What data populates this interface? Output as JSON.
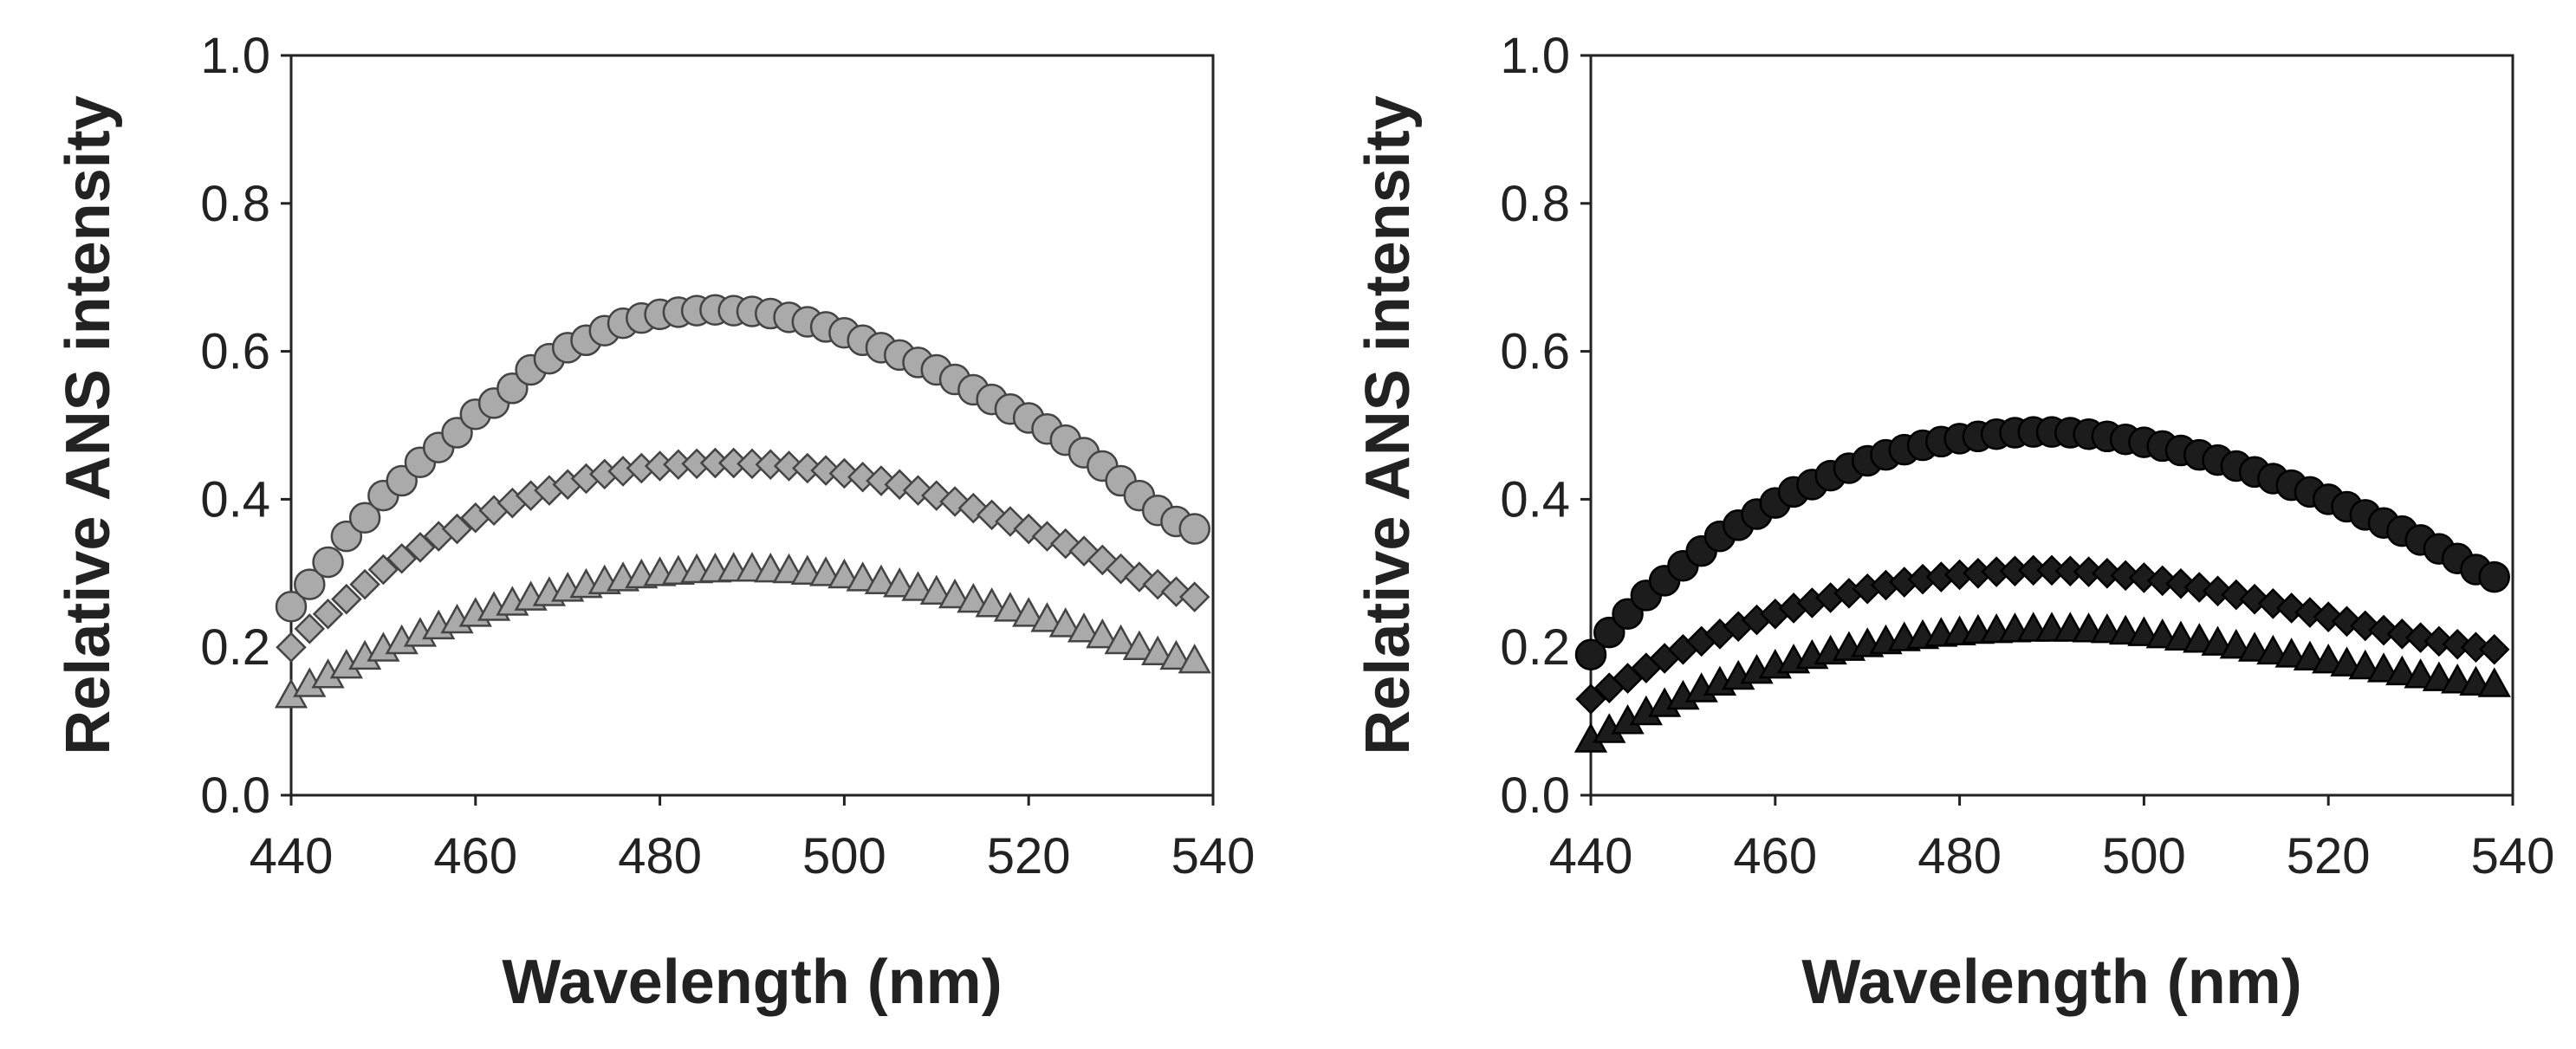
{
  "chart_data": [
    {
      "type": "scatter",
      "xlabel": "Wavelength (nm)",
      "ylabel": "Relative ANS intensity",
      "xlim": [
        440,
        540
      ],
      "ylim": [
        0.0,
        1.0
      ],
      "xticks": [
        "440",
        "460",
        "480",
        "500",
        "520",
        "540"
      ],
      "yticks": [
        "0.0",
        "0.2",
        "0.4",
        "0.6",
        "0.8",
        "1.0"
      ],
      "marker_color": "#aaaaaa",
      "marker_stroke": "#444444",
      "series": [
        {
          "marker": "circle",
          "x": [
            440,
            442,
            444,
            446,
            448,
            450,
            452,
            454,
            456,
            458,
            460,
            462,
            464,
            466,
            468,
            470,
            472,
            474,
            476,
            478,
            480,
            482,
            484,
            486,
            488,
            490,
            492,
            494,
            496,
            498,
            500,
            502,
            504,
            506,
            508,
            510,
            512,
            514,
            516,
            518,
            520,
            522,
            524,
            526,
            528,
            530,
            532,
            534,
            536,
            538
          ],
          "y": [
            0.255,
            0.285,
            0.315,
            0.35,
            0.375,
            0.405,
            0.425,
            0.45,
            0.47,
            0.49,
            0.515,
            0.53,
            0.55,
            0.575,
            0.59,
            0.605,
            0.615,
            0.628,
            0.638,
            0.645,
            0.65,
            0.653,
            0.655,
            0.656,
            0.655,
            0.654,
            0.651,
            0.646,
            0.64,
            0.633,
            0.625,
            0.615,
            0.605,
            0.595,
            0.585,
            0.575,
            0.562,
            0.548,
            0.535,
            0.522,
            0.51,
            0.495,
            0.48,
            0.463,
            0.445,
            0.425,
            0.405,
            0.385,
            0.37,
            0.36
          ]
        },
        {
          "marker": "diamond",
          "x": [
            440,
            442,
            444,
            446,
            448,
            450,
            452,
            454,
            456,
            458,
            460,
            462,
            464,
            466,
            468,
            470,
            472,
            474,
            476,
            478,
            480,
            482,
            484,
            486,
            488,
            490,
            492,
            494,
            496,
            498,
            500,
            502,
            504,
            506,
            508,
            510,
            512,
            514,
            516,
            518,
            520,
            522,
            524,
            526,
            528,
            530,
            532,
            534,
            536,
            538
          ],
          "y": [
            0.2,
            0.225,
            0.245,
            0.265,
            0.285,
            0.305,
            0.32,
            0.335,
            0.35,
            0.36,
            0.375,
            0.385,
            0.395,
            0.405,
            0.412,
            0.42,
            0.428,
            0.434,
            0.438,
            0.442,
            0.445,
            0.447,
            0.448,
            0.449,
            0.449,
            0.448,
            0.447,
            0.445,
            0.442,
            0.439,
            0.435,
            0.43,
            0.425,
            0.42,
            0.412,
            0.405,
            0.397,
            0.388,
            0.379,
            0.37,
            0.36,
            0.35,
            0.34,
            0.33,
            0.318,
            0.306,
            0.295,
            0.285,
            0.275,
            0.268
          ]
        },
        {
          "marker": "triangle",
          "x": [
            440,
            442,
            444,
            446,
            448,
            450,
            452,
            454,
            456,
            458,
            460,
            462,
            464,
            466,
            468,
            470,
            472,
            474,
            476,
            478,
            480,
            482,
            484,
            486,
            488,
            490,
            492,
            494,
            496,
            498,
            500,
            502,
            504,
            506,
            508,
            510,
            512,
            514,
            516,
            518,
            520,
            522,
            524,
            526,
            528,
            530,
            532,
            534,
            536,
            538
          ],
          "y": [
            0.135,
            0.15,
            0.162,
            0.175,
            0.187,
            0.198,
            0.208,
            0.218,
            0.228,
            0.236,
            0.245,
            0.253,
            0.26,
            0.267,
            0.273,
            0.279,
            0.284,
            0.289,
            0.293,
            0.297,
            0.3,
            0.302,
            0.304,
            0.305,
            0.306,
            0.306,
            0.305,
            0.304,
            0.302,
            0.3,
            0.297,
            0.293,
            0.289,
            0.285,
            0.28,
            0.275,
            0.27,
            0.264,
            0.258,
            0.252,
            0.245,
            0.238,
            0.231,
            0.224,
            0.216,
            0.208,
            0.2,
            0.193,
            0.187,
            0.182
          ]
        }
      ]
    },
    {
      "type": "scatter",
      "xlabel": "Wavelength (nm)",
      "ylabel": "Relative ANS intensity",
      "xlim": [
        440,
        540
      ],
      "ylim": [
        0.0,
        1.0
      ],
      "xticks": [
        "440",
        "460",
        "480",
        "500",
        "520",
        "540"
      ],
      "yticks": [
        "0.0",
        "0.2",
        "0.4",
        "0.6",
        "0.8",
        "1.0"
      ],
      "marker_color": "#1c1c1c",
      "marker_stroke": "#000000",
      "series": [
        {
          "marker": "circle",
          "x": [
            440,
            442,
            444,
            446,
            448,
            450,
            452,
            454,
            456,
            458,
            460,
            462,
            464,
            466,
            468,
            470,
            472,
            474,
            476,
            478,
            480,
            482,
            484,
            486,
            488,
            490,
            492,
            494,
            496,
            498,
            500,
            502,
            504,
            506,
            508,
            510,
            512,
            514,
            516,
            518,
            520,
            522,
            524,
            526,
            528,
            530,
            532,
            534,
            536,
            538
          ],
          "y": [
            0.19,
            0.22,
            0.245,
            0.27,
            0.29,
            0.31,
            0.33,
            0.35,
            0.365,
            0.38,
            0.395,
            0.41,
            0.42,
            0.432,
            0.442,
            0.452,
            0.46,
            0.467,
            0.473,
            0.478,
            0.482,
            0.485,
            0.488,
            0.49,
            0.491,
            0.491,
            0.49,
            0.488,
            0.485,
            0.481,
            0.477,
            0.472,
            0.466,
            0.46,
            0.453,
            0.445,
            0.437,
            0.428,
            0.419,
            0.41,
            0.4,
            0.39,
            0.379,
            0.368,
            0.357,
            0.345,
            0.333,
            0.32,
            0.305,
            0.295
          ]
        },
        {
          "marker": "diamond",
          "x": [
            440,
            442,
            444,
            446,
            448,
            450,
            452,
            454,
            456,
            458,
            460,
            462,
            464,
            466,
            468,
            470,
            472,
            474,
            476,
            478,
            480,
            482,
            484,
            486,
            488,
            490,
            492,
            494,
            496,
            498,
            500,
            502,
            504,
            506,
            508,
            510,
            512,
            514,
            516,
            518,
            520,
            522,
            524,
            526,
            528,
            530,
            532,
            534,
            536,
            538
          ],
          "y": [
            0.13,
            0.145,
            0.158,
            0.172,
            0.185,
            0.197,
            0.208,
            0.218,
            0.228,
            0.237,
            0.245,
            0.253,
            0.26,
            0.267,
            0.273,
            0.279,
            0.284,
            0.288,
            0.292,
            0.295,
            0.298,
            0.3,
            0.302,
            0.303,
            0.304,
            0.304,
            0.303,
            0.302,
            0.3,
            0.297,
            0.294,
            0.29,
            0.286,
            0.281,
            0.276,
            0.271,
            0.265,
            0.259,
            0.253,
            0.247,
            0.241,
            0.235,
            0.229,
            0.223,
            0.218,
            0.213,
            0.208,
            0.204,
            0.2,
            0.197
          ]
        },
        {
          "marker": "triangle",
          "x": [
            440,
            442,
            444,
            446,
            448,
            450,
            452,
            454,
            456,
            458,
            460,
            462,
            464,
            466,
            468,
            470,
            472,
            474,
            476,
            478,
            480,
            482,
            484,
            486,
            488,
            490,
            492,
            494,
            496,
            498,
            500,
            502,
            504,
            506,
            508,
            510,
            512,
            514,
            516,
            518,
            520,
            522,
            524,
            526,
            528,
            530,
            532,
            534,
            536,
            538
          ],
          "y": [
            0.075,
            0.088,
            0.1,
            0.112,
            0.123,
            0.133,
            0.143,
            0.152,
            0.16,
            0.168,
            0.175,
            0.182,
            0.188,
            0.194,
            0.199,
            0.204,
            0.208,
            0.212,
            0.215,
            0.218,
            0.22,
            0.222,
            0.223,
            0.224,
            0.225,
            0.225,
            0.225,
            0.224,
            0.223,
            0.221,
            0.219,
            0.216,
            0.213,
            0.21,
            0.206,
            0.202,
            0.198,
            0.194,
            0.19,
            0.186,
            0.182,
            0.178,
            0.174,
            0.17,
            0.166,
            0.162,
            0.158,
            0.155,
            0.152,
            0.15
          ]
        }
      ]
    }
  ]
}
